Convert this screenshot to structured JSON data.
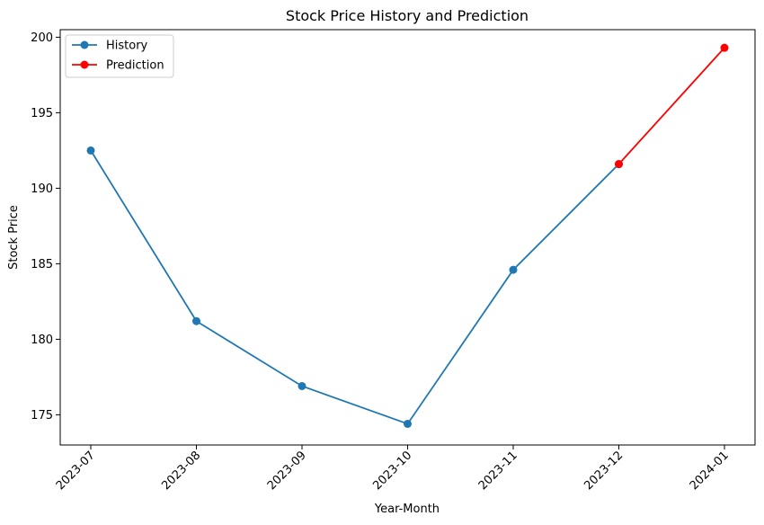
{
  "chart_data": {
    "type": "line",
    "title": "Stock Price History and Prediction",
    "xlabel": "Year-Month",
    "ylabel": "Stock Price",
    "categories": [
      "2023-07",
      "2023-08",
      "2023-09",
      "2023-10",
      "2023-11",
      "2023-12",
      "2024-01"
    ],
    "ylim": [
      173,
      200.5
    ],
    "yticks": [
      175,
      180,
      185,
      190,
      195,
      200
    ],
    "grid": false,
    "legend_position": "top-left",
    "series": [
      {
        "name": "History",
        "color": "#1f77b4",
        "x": [
          "2023-07",
          "2023-08",
          "2023-09",
          "2023-10",
          "2023-11",
          "2023-12"
        ],
        "values": [
          192.5,
          181.2,
          176.9,
          174.4,
          184.6,
          191.6
        ]
      },
      {
        "name": "Prediction",
        "color": "#ff0000",
        "x": [
          "2023-12",
          "2024-01"
        ],
        "values": [
          191.6,
          199.3
        ]
      }
    ]
  }
}
